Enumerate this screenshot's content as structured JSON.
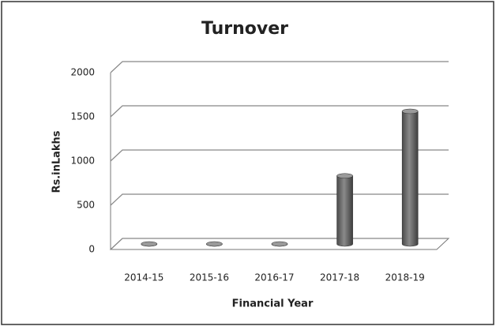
{
  "chart_data": {
    "type": "bar3d",
    "title": "Turnover",
    "x_label": "Financial Year",
    "y_label": "Rs.inLakhs",
    "categories": [
      "2014-15",
      "2015-16",
      "2016-17",
      "2017-18",
      "2018-19"
    ],
    "values": [
      0,
      0,
      0,
      770,
      1500
    ],
    "color": "#6e6e6e",
    "ylim": [
      0,
      2000
    ],
    "yticks": [
      0,
      500,
      1000,
      1500,
      2000
    ],
    "grid": true
  }
}
